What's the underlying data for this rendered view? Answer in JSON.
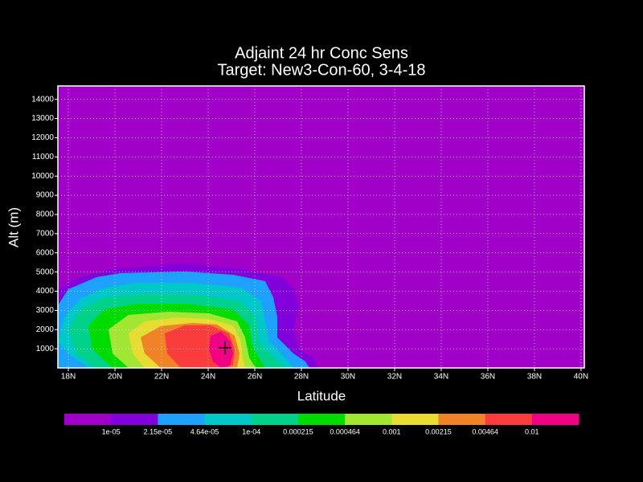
{
  "chart_data": {
    "type": "contour",
    "title": "Adjaint 24 hr Conc Sens",
    "subtitle": "Target: New3-Con-60, 3-4-18",
    "x_label": "Latitude",
    "y_label": "Alt (m)",
    "xlim": [
      17.55,
      40.14
    ],
    "ylim": [
      0,
      14700
    ],
    "xticks": [
      {
        "value": 18,
        "label": "18N"
      },
      {
        "value": 20,
        "label": "20N"
      },
      {
        "value": 22,
        "label": "22N"
      },
      {
        "value": 24,
        "label": "24N"
      },
      {
        "value": 26,
        "label": "26N"
      },
      {
        "value": 28,
        "label": "28N"
      },
      {
        "value": 30,
        "label": "30N"
      },
      {
        "value": 32,
        "label": "32N"
      },
      {
        "value": 34,
        "label": "34N"
      },
      {
        "value": 36,
        "label": "36N"
      },
      {
        "value": 38,
        "label": "38N"
      },
      {
        "value": 40,
        "label": "40N"
      }
    ],
    "yticks": [
      1000,
      2000,
      3000,
      4000,
      5000,
      6000,
      7000,
      8000,
      9000,
      10000,
      11000,
      12000,
      13000,
      14000
    ],
    "grid": true,
    "levels": [
      {
        "value": 1e-05,
        "label": "1e-05"
      },
      {
        "value": 2.15e-05,
        "label": "2.15e-05"
      },
      {
        "value": 4.64e-05,
        "label": "4.64e-05"
      },
      {
        "value": 0.0001,
        "label": "1e-04"
      },
      0.000215,
      0.000464,
      0.001,
      0.00215,
      0.00464,
      0.01
    ],
    "colors": [
      "#a000c8",
      "#8200dc",
      "#1ea0ff",
      "#00c8c8",
      "#00d28c",
      "#00dc00",
      "#a0e632",
      "#e6dc32",
      "#f08228",
      "#fa3c3c",
      "#f00082"
    ]
  }
}
